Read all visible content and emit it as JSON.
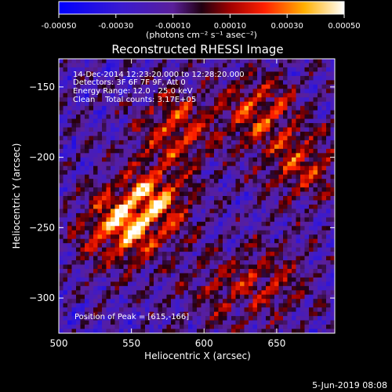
{
  "colorbar": {
    "ticks": [
      "-0.00050",
      "-0.00030",
      "-0.00010",
      "0.00010",
      "0.00030",
      "0.00050"
    ],
    "tick_values": [
      -0.0005,
      -0.0003,
      -0.0001,
      0.0001,
      0.0003,
      0.0005
    ],
    "range": [
      -0.0005,
      0.0005
    ],
    "colormap": "blue-purple-red-yellow-white",
    "unit_label": "(photons cm⁻² s⁻¹ asec⁻²)"
  },
  "chart_data": {
    "type": "heatmap",
    "title": "Reconstructed RHESSI Image",
    "xlabel": "Heliocentric X (arcsec)",
    "ylabel": "Heliocentric Y (arcsec)",
    "xlim": [
      500,
      690
    ],
    "ylim": [
      -325,
      -130
    ],
    "x_ticks": [
      500,
      550,
      600,
      650
    ],
    "x_tick_labels": [
      "500",
      "550",
      "600",
      "650"
    ],
    "y_ticks": [
      -150,
      -200,
      -250,
      -300
    ],
    "y_tick_labels": [
      "−150",
      "−200",
      "−250",
      "−300"
    ],
    "annotations": [
      "14-Dec-2014 12:23:20.000 to 12:28:20.000",
      "Detectors: 3F 6F 7F 9F, Att 0",
      "Energy Range: 12.0 - 25.0 keV",
      "Clean    Total counts: 3.17E+05"
    ],
    "peak_label": "Position of Peak = [615,-166]",
    "peak_position": [
      615,
      -166
    ],
    "grid": false
  },
  "footer": {
    "date": "5-Jun-2019 08:08"
  }
}
